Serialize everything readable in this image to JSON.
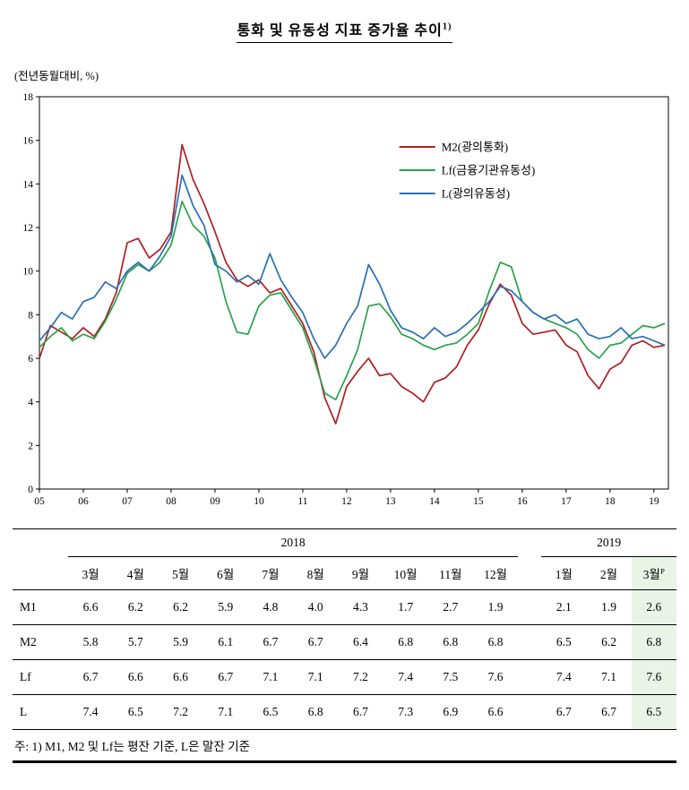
{
  "title": {
    "text": "통화 및 유동성 지표 증가율 추이",
    "superscript": "1)"
  },
  "note": "주: 1) M1, M2 및 Lf는 평잔 기준, L은 말잔 기준",
  "chart_data": {
    "type": "line",
    "unit_label": "(전년동월대비, %)",
    "ylim": [
      0,
      18
    ],
    "y_ticks": [
      0,
      2,
      4,
      6,
      8,
      10,
      12,
      14,
      16,
      18
    ],
    "x_range": [
      2005,
      2019.33
    ],
    "x_tick_labels": [
      "05",
      "06",
      "07",
      "08",
      "09",
      "10",
      "11",
      "12",
      "13",
      "14",
      "15",
      "16",
      "17",
      "18",
      "19"
    ],
    "grid": false,
    "legend_position": "inside-upper-right",
    "x": [
      2005,
      2005.25,
      2005.5,
      2005.75,
      2006,
      2006.25,
      2006.5,
      2006.75,
      2007,
      2007.25,
      2007.5,
      2007.75,
      2008,
      2008.25,
      2008.5,
      2008.75,
      2009,
      2009.25,
      2009.5,
      2009.75,
      2010,
      2010.25,
      2010.5,
      2010.75,
      2011,
      2011.25,
      2011.5,
      2011.75,
      2012,
      2012.25,
      2012.5,
      2012.75,
      2013,
      2013.25,
      2013.5,
      2013.75,
      2014,
      2014.25,
      2014.5,
      2014.75,
      2015,
      2015.25,
      2015.5,
      2015.75,
      2016,
      2016.25,
      2016.5,
      2016.75,
      2017,
      2017.25,
      2017.5,
      2017.75,
      2018,
      2018.25,
      2018.5,
      2018.75,
      2019,
      2019.25
    ],
    "series": [
      {
        "name": "M2(광의통화)",
        "color": "#b01e23",
        "values": [
          6.0,
          7.5,
          7.2,
          6.9,
          7.4,
          7.0,
          7.8,
          9.0,
          11.3,
          11.5,
          10.6,
          11.0,
          11.8,
          15.8,
          14.2,
          13.1,
          11.8,
          10.4,
          9.6,
          9.3,
          9.6,
          9.0,
          9.2,
          8.4,
          7.6,
          6.3,
          4.2,
          3.0,
          4.7,
          5.4,
          6.0,
          5.2,
          5.3,
          4.7,
          4.4,
          4.0,
          4.9,
          5.1,
          5.6,
          6.6,
          7.3,
          8.5,
          9.4,
          8.9,
          7.6,
          7.1,
          7.2,
          7.3,
          6.6,
          6.3,
          5.2,
          4.6,
          5.5,
          5.8,
          6.6,
          6.8,
          6.5,
          6.6
        ]
      },
      {
        "name": "Lf(금융기관유동성)",
        "color": "#2aa24a",
        "values": [
          6.5,
          7.0,
          7.4,
          6.8,
          7.1,
          6.9,
          7.7,
          8.7,
          9.9,
          10.3,
          10.0,
          10.4,
          11.2,
          13.2,
          12.1,
          11.6,
          10.6,
          8.6,
          7.2,
          7.1,
          8.4,
          8.9,
          9.0,
          8.2,
          7.4,
          6.0,
          4.4,
          4.1,
          5.2,
          6.4,
          8.4,
          8.5,
          7.9,
          7.1,
          6.9,
          6.6,
          6.4,
          6.6,
          6.7,
          7.1,
          7.6,
          9.1,
          10.4,
          10.2,
          8.6,
          8.1,
          7.8,
          7.6,
          7.4,
          7.1,
          6.4,
          6.0,
          6.6,
          6.7,
          7.1,
          7.5,
          7.4,
          7.6
        ]
      },
      {
        "name": "L(광의유동성)",
        "color": "#2a6fb5",
        "values": [
          6.8,
          7.4,
          8.1,
          7.8,
          8.6,
          8.8,
          9.5,
          9.2,
          10.0,
          10.4,
          10.0,
          10.7,
          11.6,
          14.4,
          13.0,
          12.1,
          10.3,
          10.0,
          9.5,
          9.8,
          9.4,
          10.8,
          9.6,
          8.8,
          8.1,
          6.9,
          6.0,
          6.6,
          7.6,
          8.4,
          10.3,
          9.4,
          8.2,
          7.4,
          7.2,
          6.9,
          7.4,
          7.0,
          7.2,
          7.6,
          8.1,
          8.6,
          9.3,
          9.1,
          8.6,
          8.1,
          7.8,
          8.0,
          7.6,
          7.8,
          7.1,
          6.9,
          7.0,
          7.4,
          6.9,
          7.0,
          6.8,
          6.6
        ]
      }
    ]
  },
  "table": {
    "year_groups": [
      {
        "label": "2018",
        "span": 10
      },
      {
        "label": "2019",
        "span": 3
      }
    ],
    "columns_2018": [
      "3월",
      "4월",
      "5월",
      "6월",
      "7월",
      "8월",
      "9월",
      "10월",
      "11월",
      "12월"
    ],
    "columns_2019": [
      "1월",
      "2월",
      "3월"
    ],
    "p_superscript": "P",
    "rows": [
      {
        "label": "M1",
        "values_2018": [
          "6.6",
          "6.2",
          "6.2",
          "5.9",
          "4.8",
          "4.0",
          "4.3",
          "1.7",
          "2.7",
          "1.9"
        ],
        "values_2019": [
          "2.1",
          "1.9",
          "2.6"
        ]
      },
      {
        "label": "M2",
        "values_2018": [
          "5.8",
          "5.7",
          "5.9",
          "6.1",
          "6.7",
          "6.7",
          "6.4",
          "6.8",
          "6.8",
          "6.8"
        ],
        "values_2019": [
          "6.5",
          "6.2",
          "6.8"
        ]
      },
      {
        "label": "Lf",
        "values_2018": [
          "6.7",
          "6.6",
          "6.6",
          "6.7",
          "7.1",
          "7.1",
          "7.2",
          "7.4",
          "7.5",
          "7.6"
        ],
        "values_2019": [
          "7.4",
          "7.1",
          "7.6"
        ]
      },
      {
        "label": "L",
        "values_2018": [
          "7.4",
          "6.5",
          "7.2",
          "7.1",
          "6.5",
          "6.8",
          "6.7",
          "7.3",
          "6.9",
          "6.6"
        ],
        "values_2019": [
          "6.7",
          "6.7",
          "6.5"
        ]
      }
    ]
  }
}
